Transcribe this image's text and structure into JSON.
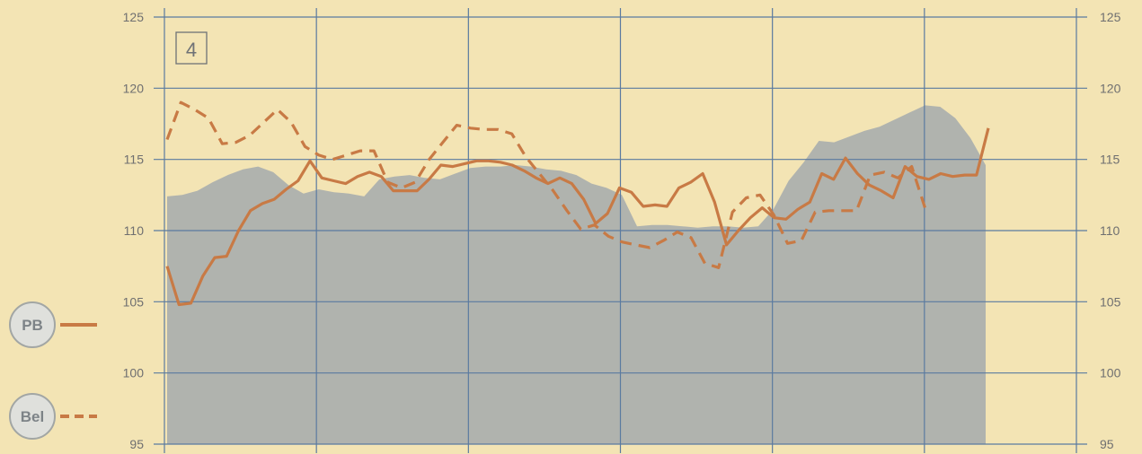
{
  "chart_data": {
    "type": "line",
    "panel_label": "4",
    "ylim": [
      95,
      125
    ],
    "yticks": [
      "95",
      "100",
      "105",
      "110",
      "115",
      "120",
      "125"
    ],
    "grid": true,
    "legend_placement": "left",
    "x_divisions": 6,
    "series": [
      {
        "name": "PB",
        "style": "solid",
        "color": "#c87a45",
        "values": [
          107.5,
          104.8,
          104.9,
          106.8,
          108.1,
          108.2,
          110.0,
          111.4,
          111.9,
          112.2,
          112.9,
          113.5,
          114.9,
          113.7,
          113.5,
          113.3,
          113.8,
          114.1,
          113.8,
          112.8,
          112.8,
          112.8,
          113.6,
          114.6,
          114.5,
          114.7,
          114.9,
          114.9,
          114.8,
          114.6,
          114.2,
          113.7,
          113.3,
          113.7,
          113.3,
          112.2,
          110.5,
          111.2,
          113.0,
          112.7,
          111.7,
          111.8,
          111.7,
          113.0,
          113.4,
          114.0,
          112.0,
          109.0,
          110.0,
          110.9,
          111.6,
          110.9,
          110.8,
          111.5,
          112.0,
          114.0,
          113.6,
          115.1,
          114.0,
          113.2,
          112.8,
          112.3,
          114.5,
          113.8,
          113.6,
          114.0,
          113.8,
          113.9,
          113.9,
          117.2
        ]
      },
      {
        "name": "Bel",
        "style": "dashed",
        "color": "#c87a45",
        "values": [
          116.4,
          119.0,
          118.5,
          117.9,
          116.1,
          116.2,
          116.7,
          117.6,
          118.5,
          117.6,
          115.9,
          115.3,
          115.0,
          115.3,
          115.6,
          115.6,
          113.4,
          113.0,
          113.4,
          115.0,
          116.2,
          117.4,
          117.2,
          117.1,
          117.1,
          116.8,
          115.2,
          114.0,
          112.8,
          111.4,
          110.1,
          110.4,
          109.6,
          109.2,
          109.0,
          108.8,
          109.3,
          109.9,
          109.5,
          107.7,
          107.4,
          111.3,
          112.3,
          112.5,
          111.1,
          109.1,
          109.3,
          111.3,
          111.4,
          111.4,
          111.4,
          113.9,
          114.1,
          113.7,
          114.5,
          111.5
        ]
      },
      {
        "name": "",
        "style": "area",
        "color": "#b0b3ae",
        "values": [
          112.4,
          112.5,
          112.8,
          113.4,
          113.9,
          114.3,
          114.5,
          114.1,
          113.2,
          112.6,
          112.9,
          112.7,
          112.6,
          112.4,
          113.6,
          113.8,
          113.9,
          113.7,
          113.6,
          114.0,
          114.4,
          114.5,
          114.5,
          114.6,
          114.5,
          114.3,
          114.2,
          113.9,
          113.3,
          113.0,
          112.5,
          110.3,
          110.4,
          110.4,
          110.3,
          110.2,
          110.3,
          110.3,
          110.2,
          110.3,
          111.5,
          113.5,
          114.8,
          116.3,
          116.2,
          116.6,
          117.0,
          117.3,
          117.8,
          118.3,
          118.8,
          118.7,
          117.9,
          116.5,
          114.6
        ]
      }
    ]
  },
  "legend": {
    "pb_label": "PB",
    "bel_label": "Bel"
  },
  "colors": {
    "background": "#f3e4b4",
    "grid": "#5a7aa0",
    "tick_text": "#6f6f70",
    "legend_circle_fill": "#dfe0dc",
    "legend_circle_stroke": "#a2a6a4"
  }
}
